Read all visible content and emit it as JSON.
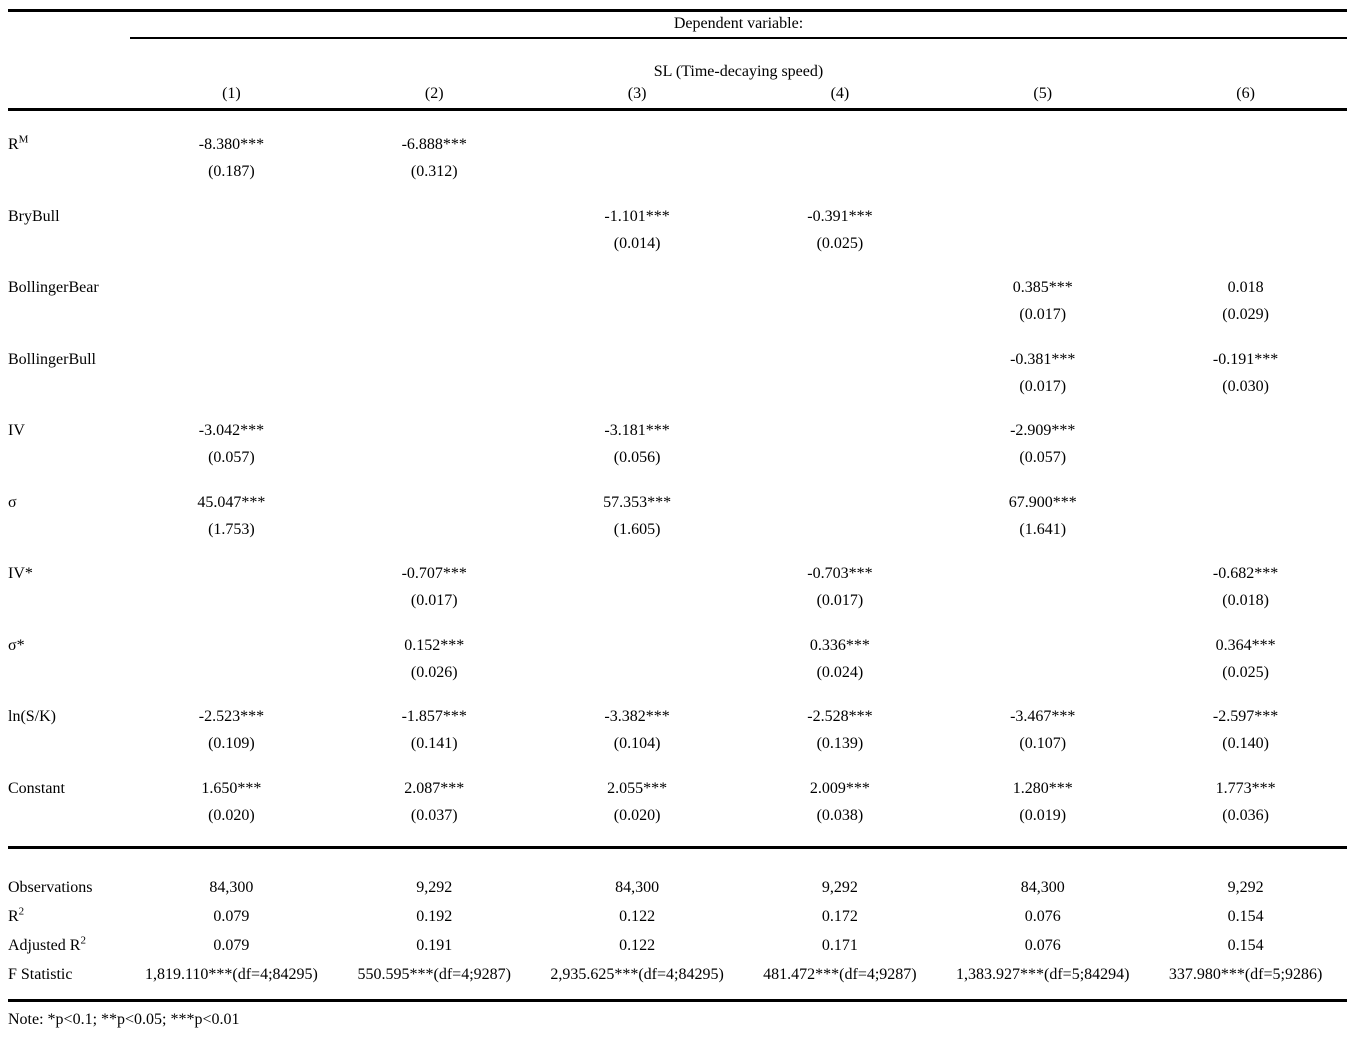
{
  "table": {
    "dependent_variable_label": "Dependent variable:",
    "dependent_variable_name": "SL (Time-decaying speed)",
    "column_headers": [
      "(1)",
      "(2)",
      "(3)",
      "(4)",
      "(5)",
      "(6)"
    ],
    "coefficient_rows": [
      {
        "label_base": "R",
        "label_sup": "M",
        "estimates": [
          "-8.380***",
          "-6.888***",
          "",
          "",
          "",
          ""
        ],
        "std_errors": [
          "(0.187)",
          "(0.312)",
          "",
          "",
          "",
          ""
        ]
      },
      {
        "label_base": "BryBull",
        "label_sup": "",
        "estimates": [
          "",
          "",
          "-1.101***",
          "-0.391***",
          "",
          ""
        ],
        "std_errors": [
          "",
          "",
          "(0.014)",
          "(0.025)",
          "",
          ""
        ]
      },
      {
        "label_base": "BollingerBear",
        "label_sup": "",
        "estimates": [
          "",
          "",
          "",
          "",
          "0.385***",
          "0.018"
        ],
        "std_errors": [
          "",
          "",
          "",
          "",
          "(0.017)",
          "(0.029)"
        ]
      },
      {
        "label_base": "BollingerBull",
        "label_sup": "",
        "estimates": [
          "",
          "",
          "",
          "",
          "-0.381***",
          "-0.191***"
        ],
        "std_errors": [
          "",
          "",
          "",
          "",
          "(0.017)",
          "(0.030)"
        ]
      },
      {
        "label_base": "IV",
        "label_sup": "",
        "estimates": [
          "-3.042***",
          "",
          "-3.181***",
          "",
          "-2.909***",
          ""
        ],
        "std_errors": [
          "(0.057)",
          "",
          "(0.056)",
          "",
          "(0.057)",
          ""
        ]
      },
      {
        "label_base": "σ",
        "label_sup": "",
        "estimates": [
          "45.047***",
          "",
          "57.353***",
          "",
          "67.900***",
          ""
        ],
        "std_errors": [
          "(1.753)",
          "",
          "(1.605)",
          "",
          "(1.641)",
          ""
        ]
      },
      {
        "label_base": "IV*",
        "label_sup": "",
        "estimates": [
          "",
          "-0.707***",
          "",
          "-0.703***",
          "",
          "-0.682***"
        ],
        "std_errors": [
          "",
          "(0.017)",
          "",
          "(0.017)",
          "",
          "(0.018)"
        ]
      },
      {
        "label_base": "σ*",
        "label_sup": "",
        "estimates": [
          "",
          "0.152***",
          "",
          "0.336***",
          "",
          "0.364***"
        ],
        "std_errors": [
          "",
          "(0.026)",
          "",
          "(0.024)",
          "",
          "(0.025)"
        ]
      },
      {
        "label_base": "ln(S/K)",
        "label_sup": "",
        "estimates": [
          "-2.523***",
          "-1.857***",
          "-3.382***",
          "-2.528***",
          "-3.467***",
          "-2.597***"
        ],
        "std_errors": [
          "(0.109)",
          "(0.141)",
          "(0.104)",
          "(0.139)",
          "(0.107)",
          "(0.140)"
        ]
      },
      {
        "label_base": "Constant",
        "label_sup": "",
        "estimates": [
          "1.650***",
          "2.087***",
          "2.055***",
          "2.009***",
          "1.280***",
          "1.773***"
        ],
        "std_errors": [
          "(0.020)",
          "(0.037)",
          "(0.020)",
          "(0.038)",
          "(0.019)",
          "(0.036)"
        ]
      }
    ],
    "stats_rows": [
      {
        "label_base": "Observations",
        "label_sup": "",
        "values": [
          "84,300",
          "9,292",
          "84,300",
          "9,292",
          "84,300",
          "9,292"
        ]
      },
      {
        "label_base": "R",
        "label_sup": "2",
        "values": [
          "0.079",
          "0.192",
          "0.122",
          "0.172",
          "0.076",
          "0.154"
        ]
      },
      {
        "label_base": "Adjusted R",
        "label_sup": "2",
        "values": [
          "0.079",
          "0.191",
          "0.122",
          "0.171",
          "0.076",
          "0.154"
        ]
      },
      {
        "label_base": "F Statistic",
        "label_sup": "",
        "values": [
          "1,819.110***(df=4;84295)",
          "550.595***(df=4;9287)",
          "2,935.625***(df=4;84295)",
          "481.472***(df=4;9287)",
          "1,383.927***(df=5;84294)",
          "337.980***(df=5;9286)"
        ]
      }
    ],
    "note": "Note: *p<0.1; **p<0.05; ***p<0.01"
  }
}
